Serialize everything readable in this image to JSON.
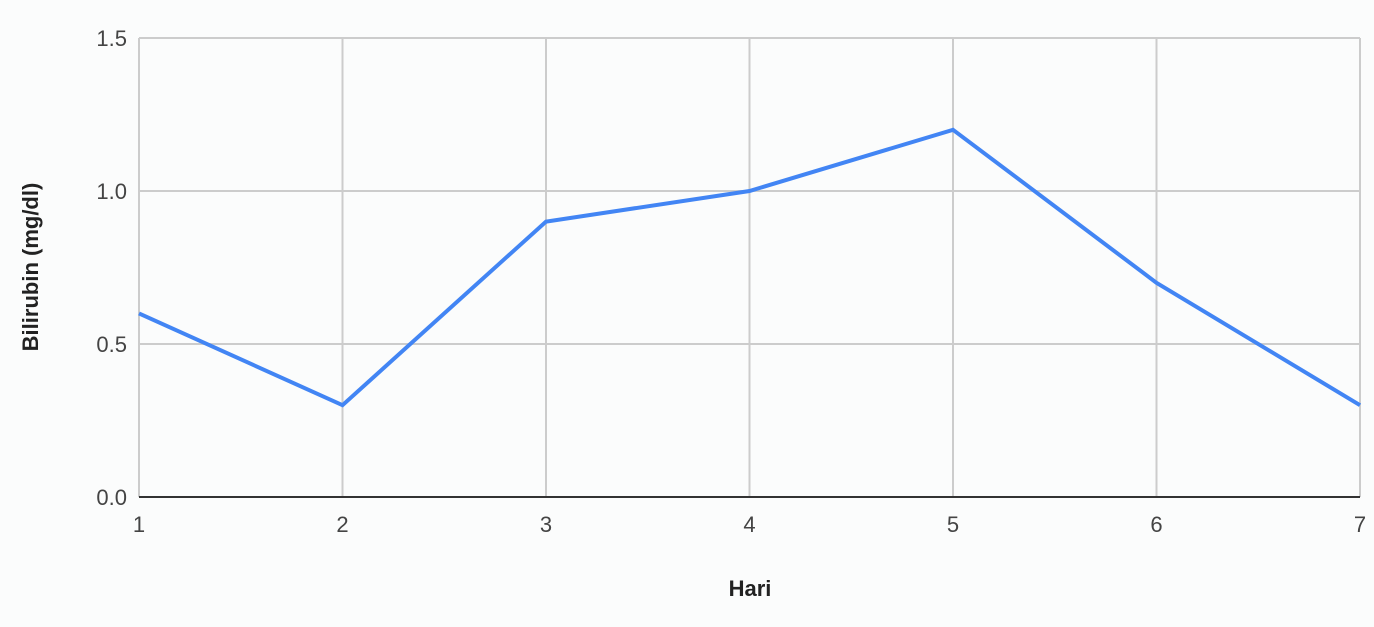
{
  "chart_data": {
    "type": "line",
    "title": "",
    "xlabel": "Hari",
    "ylabel": "Bilirubin (mg/dl)",
    "x": [
      1,
      2,
      3,
      4,
      5,
      6,
      7
    ],
    "x_tick_labels": [
      "1",
      "2",
      "3",
      "4",
      "5",
      "6",
      "7"
    ],
    "series": [
      {
        "values": [
          0.6,
          0.3,
          0.9,
          1.0,
          1.2,
          0.7,
          0.3
        ],
        "color": "#4285f4"
      }
    ],
    "xlim": [
      1,
      7
    ],
    "ylim": [
      0,
      1.5
    ],
    "y_ticks": [
      0,
      0.5,
      1.0,
      1.5
    ],
    "y_tick_labels": [
      "0.0",
      "0.5",
      "1.0",
      "1.5"
    ],
    "grid": true,
    "legend": "none"
  }
}
